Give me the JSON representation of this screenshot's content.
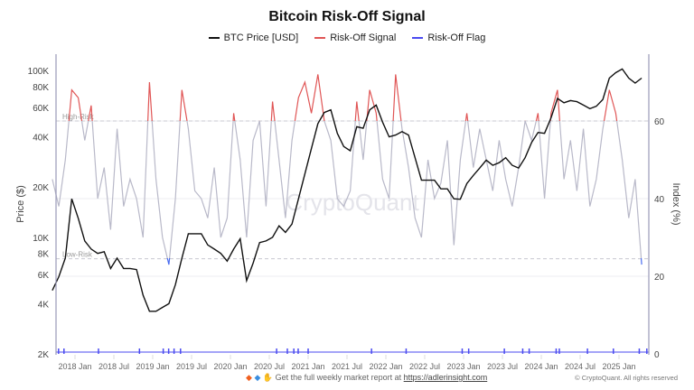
{
  "chart_data": {
    "type": "line",
    "title": "Bitcoin Risk-Off Signal",
    "legend_placement": "top",
    "ylabel_left": "Price ($)",
    "ylabel_right": "Index (%)",
    "left_axis": {
      "scale": "log",
      "range": [
        2000,
        130000
      ],
      "ticks": [
        2000,
        4000,
        6000,
        8000,
        10000,
        20000,
        40000,
        60000,
        80000,
        100000
      ],
      "tick_labels": [
        "2K",
        "4K",
        "6K",
        "8K",
        "10K",
        "20K",
        "40K",
        "60K",
        "80K",
        "100K"
      ]
    },
    "right_axis": {
      "scale": "linear",
      "range": [
        0,
        80
      ],
      "ticks": [
        0,
        20,
        40,
        60
      ],
      "tick_labels": [
        "0",
        "20",
        "40",
        "60"
      ]
    },
    "x_tick_labels": [
      "2018 Jan",
      "2018 Jul",
      "2019 Jan",
      "2019 Jul",
      "2020 Jan",
      "2020 Jul",
      "2021 Jan",
      "2021 Jul",
      "2022 Jan",
      "2022 Jul",
      "2023 Jan",
      "2023 Jul",
      "2024 Jan",
      "2024 Jul",
      "2025 Jan"
    ],
    "thresholds": [
      {
        "label": "High-Risk",
        "value": 60
      },
      {
        "label": "Low-Risk",
        "value": 24.5
      }
    ],
    "months": [
      "2017-09",
      "2017-10",
      "2017-11",
      "2017-12",
      "2018-01",
      "2018-02",
      "2018-03",
      "2018-04",
      "2018-05",
      "2018-06",
      "2018-07",
      "2018-08",
      "2018-09",
      "2018-10",
      "2018-11",
      "2018-12",
      "2019-01",
      "2019-02",
      "2019-03",
      "2019-04",
      "2019-05",
      "2019-06",
      "2019-07",
      "2019-08",
      "2019-09",
      "2019-10",
      "2019-11",
      "2019-12",
      "2020-01",
      "2020-02",
      "2020-03",
      "2020-04",
      "2020-05",
      "2020-06",
      "2020-07",
      "2020-08",
      "2020-09",
      "2020-10",
      "2020-11",
      "2020-12",
      "2021-01",
      "2021-02",
      "2021-03",
      "2021-04",
      "2021-05",
      "2021-06",
      "2021-07",
      "2021-08",
      "2021-09",
      "2021-10",
      "2021-11",
      "2021-12",
      "2022-01",
      "2022-02",
      "2022-03",
      "2022-04",
      "2022-05",
      "2022-06",
      "2022-07",
      "2022-08",
      "2022-09",
      "2022-10",
      "2022-11",
      "2022-12",
      "2023-01",
      "2023-02",
      "2023-03",
      "2023-04",
      "2023-05",
      "2023-06",
      "2023-07",
      "2023-08",
      "2023-09",
      "2023-10",
      "2023-11",
      "2023-12",
      "2024-01",
      "2024-02",
      "2024-03",
      "2024-04",
      "2024-05",
      "2024-06",
      "2024-07",
      "2024-08",
      "2024-09",
      "2024-10",
      "2024-11",
      "2024-12",
      "2025-01",
      "2025-02",
      "2025-03",
      "2025-04"
    ],
    "series": [
      {
        "name": "BTC Price [USD]",
        "axis": "left",
        "color": "#111111",
        "values": [
          4800,
          5800,
          7500,
          17000,
          13000,
          9500,
          8500,
          8000,
          8200,
          6500,
          7500,
          6500,
          6500,
          6400,
          4500,
          3600,
          3600,
          3800,
          4000,
          5200,
          7500,
          10500,
          10500,
          10500,
          9000,
          8500,
          8000,
          7200,
          8500,
          9800,
          5500,
          7000,
          9300,
          9500,
          10000,
          11700,
          10700,
          12000,
          17000,
          24000,
          34000,
          48000,
          56000,
          58000,
          42000,
          35000,
          33000,
          46000,
          45000,
          58000,
          62000,
          49000,
          40000,
          41000,
          43000,
          41000,
          30000,
          22000,
          22000,
          22000,
          19500,
          19500,
          17000,
          16900,
          21000,
          23500,
          26000,
          29000,
          27000,
          28000,
          30000,
          27000,
          26000,
          30000,
          37000,
          42500,
          42000,
          52000,
          68000,
          64000,
          66000,
          65000,
          62000,
          59000,
          61000,
          67000,
          90000,
          97000,
          102000,
          90000,
          84000,
          90000
        ]
      },
      {
        "name": "Risk-Off Signal",
        "axis": "right",
        "color": "#e05555",
        "neutral_color": "#b9b9c9",
        "low_color": "#4a6cf0",
        "values": [
          45,
          38,
          50,
          68,
          66,
          55,
          64,
          40,
          48,
          32,
          58,
          38,
          45,
          40,
          30,
          70,
          45,
          30,
          23,
          40,
          68,
          58,
          42,
          40,
          35,
          48,
          30,
          35,
          62,
          50,
          30,
          55,
          60,
          38,
          65,
          50,
          35,
          55,
          66,
          70,
          62,
          72,
          60,
          55,
          40,
          38,
          42,
          65,
          50,
          68,
          62,
          45,
          40,
          72,
          58,
          48,
          35,
          30,
          50,
          40,
          44,
          55,
          28,
          50,
          62,
          48,
          58,
          50,
          42,
          55,
          45,
          38,
          48,
          60,
          55,
          62,
          40,
          62,
          68,
          45,
          55,
          42,
          58,
          38,
          45,
          58,
          68,
          62,
          50,
          35,
          45,
          23
        ]
      },
      {
        "name": "Risk-Off Flag",
        "axis": "right",
        "color": "#4a4af0",
        "dates": [
          "2017-10-15",
          "2017-11-10",
          "2018-04-20",
          "2018-10-30",
          "2019-02-20",
          "2019-03-15",
          "2019-04-10",
          "2019-05-10",
          "2020-08-05",
          "2020-09-25",
          "2020-10-25",
          "2020-11-15",
          "2021-01-01",
          "2021-10-25",
          "2022-04-05",
          "2022-12-25",
          "2023-01-25",
          "2023-07-10",
          "2023-10-05",
          "2023-11-05",
          "2024-03-10",
          "2024-03-25",
          "2024-08-05",
          "2024-12-05",
          "2025-04-05",
          "2025-05-10"
        ]
      }
    ]
  },
  "watermark": "CryptoQuant",
  "footer": {
    "icons": [
      "orange-diamond-icon",
      "blue-diamond-icon",
      "raised-hands-icon"
    ],
    "text": "Get the full weekly market report at ",
    "link": "https://adlerinsight.com",
    "copyright": "© CryptoQuant. All rights reserved"
  }
}
